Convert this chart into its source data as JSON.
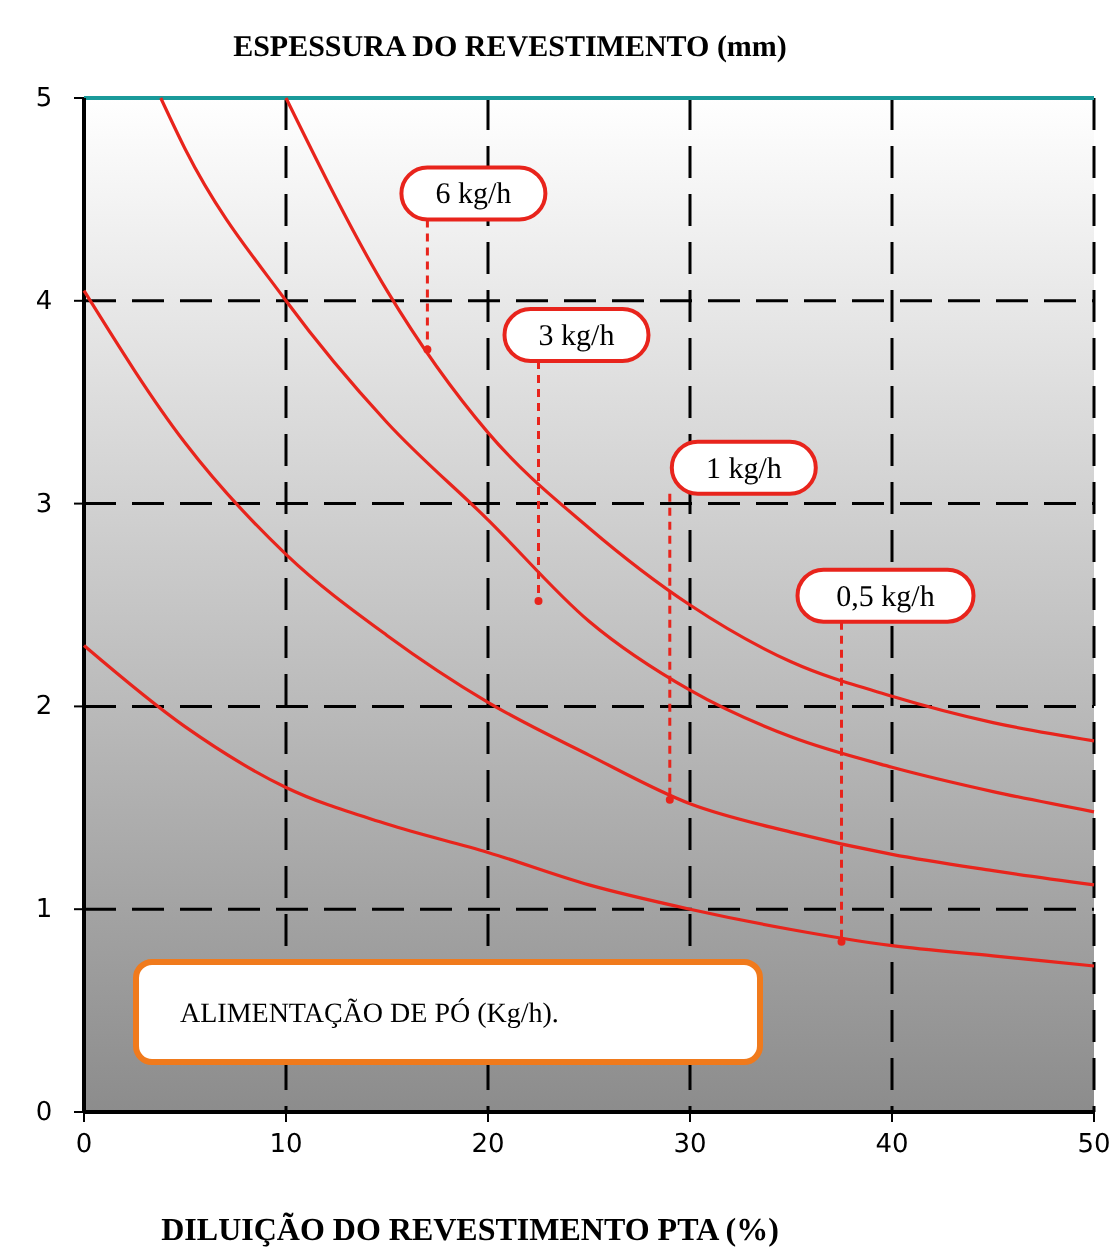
{
  "chart_data": {
    "type": "line",
    "title": "ESPESSURA DO REVESTIMENTO (mm)",
    "xlabel": "DILUIÇÃO DO REVESTIMENTO PTA (%)",
    "xlim": [
      0,
      50
    ],
    "ylim": [
      0,
      5
    ],
    "xticks": [
      0,
      10,
      20,
      30,
      40,
      50
    ],
    "yticks": [
      0,
      1,
      2,
      3,
      4,
      5
    ],
    "grid": true,
    "marker": "none",
    "line_style": "solid",
    "series": [
      {
        "color": "#e8241c",
        "x": [
          0,
          5,
          10,
          15,
          20,
          25,
          30,
          35,
          40,
          45,
          50
        ],
        "values": [
          2.3,
          1.9,
          1.6,
          1.42,
          1.28,
          1.12,
          1.0,
          0.9,
          0.82,
          0.77,
          0.72
        ]
      },
      {
        "color": "#e8241c",
        "x": [
          0,
          5,
          10,
          15,
          20,
          25,
          30,
          35,
          40,
          45,
          50
        ],
        "values": [
          4.05,
          3.3,
          2.75,
          2.35,
          2.02,
          1.76,
          1.52,
          1.38,
          1.27,
          1.19,
          1.12
        ]
      },
      {
        "color": "#e8241c",
        "x": [
          3.8,
          5,
          10,
          15,
          20,
          25,
          30,
          35,
          40,
          45,
          50
        ],
        "values": [
          5,
          4.75,
          4.0,
          3.4,
          2.92,
          2.42,
          2.08,
          1.85,
          1.7,
          1.58,
          1.48
        ]
      },
      {
        "color": "#e8241c",
        "x": [
          10,
          15,
          20,
          25,
          30,
          35,
          40,
          45,
          50
        ],
        "values": [
          5,
          4.05,
          3.35,
          2.88,
          2.5,
          2.22,
          2.05,
          1.92,
          1.83
        ]
      }
    ],
    "annotations": [
      {
        "text": "6 kg/h",
        "x": 17,
        "y": 3.76
      },
      {
        "text": "3 kg/h",
        "x": 22.5,
        "y": 2.52
      },
      {
        "text": "1 kg/h",
        "x": 29,
        "y": 1.54
      },
      {
        "text": "0,5 kg/h",
        "x": 37.5,
        "y": 0.84
      },
      "ALIMENTAÇÃO DE PÓ  (Kg/h)."
    ]
  }
}
